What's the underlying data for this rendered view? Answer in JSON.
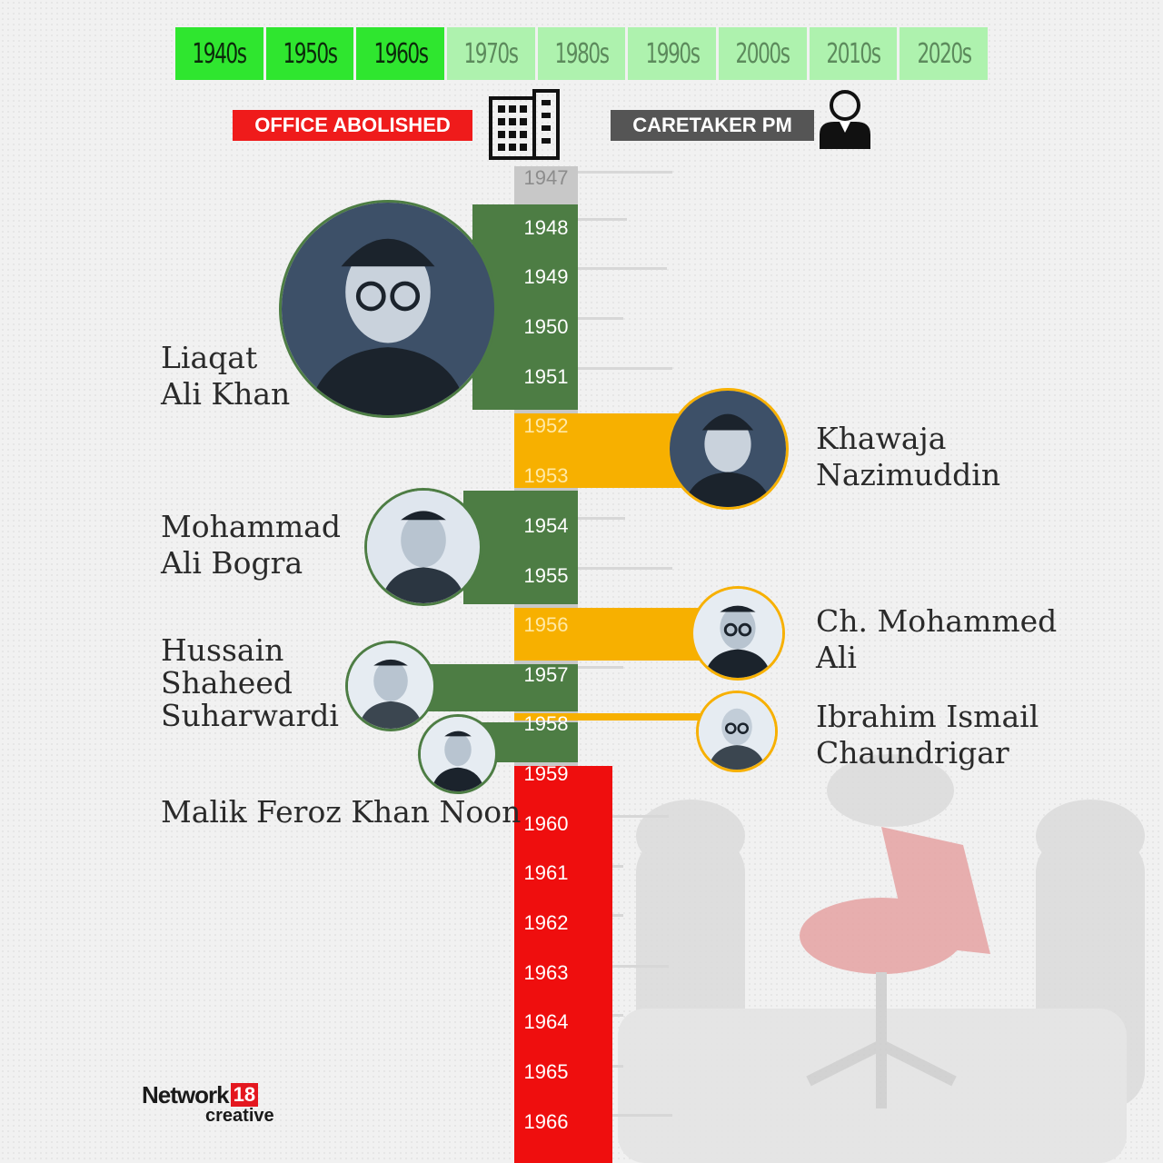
{
  "decades": [
    {
      "label": "1940s",
      "active": true
    },
    {
      "label": "1950s",
      "active": true
    },
    {
      "label": "1960s",
      "active": true
    },
    {
      "label": "1970s",
      "active": false
    },
    {
      "label": "1980s",
      "active": false
    },
    {
      "label": "1990s",
      "active": false
    },
    {
      "label": "2000s",
      "active": false
    },
    {
      "label": "2010s",
      "active": false
    },
    {
      "label": "2020s",
      "active": false
    }
  ],
  "legend": {
    "office_abolished": "OFFICE ABOLISHED",
    "caretaker_pm": "CARETAKER PM",
    "abolished_color": "#ef1b1b",
    "caretaker_color": "#555555"
  },
  "colors": {
    "pm_green": "#4d7d44",
    "pm_yellow": "#f7b000",
    "abolished_red": "#ef0e0e"
  },
  "years": [
    "1947",
    "1948",
    "1949",
    "1950",
    "1951",
    "1952",
    "1953",
    "1954",
    "1955",
    "1956",
    "1957",
    "1958",
    "1959",
    "1960",
    "1961",
    "1962",
    "1963",
    "1964",
    "1965",
    "1966"
  ],
  "prime_ministers": [
    {
      "name_line1": "Liaqat",
      "name_line2": "Ali Khan",
      "name_line3": ""
    },
    {
      "name_line1": "Khawaja",
      "name_line2": "Nazimuddin",
      "name_line3": ""
    },
    {
      "name_line1": "Mohammad",
      "name_line2": "Ali Bogra",
      "name_line3": ""
    },
    {
      "name_line1": "Ch. Mohammed",
      "name_line2": "Ali",
      "name_line3": ""
    },
    {
      "name_line1": "Hussain",
      "name_line2": "Shaheed",
      "name_line3": "Suharwardi"
    },
    {
      "name_line1": "Ibrahim Ismail",
      "name_line2": "Chaundrigar",
      "name_line3": ""
    },
    {
      "name_line1": "Malik Feroz Khan Noon",
      "name_line2": "",
      "name_line3": ""
    }
  ],
  "logo": {
    "word": "Network",
    "badge": "18",
    "sub": "creative"
  }
}
